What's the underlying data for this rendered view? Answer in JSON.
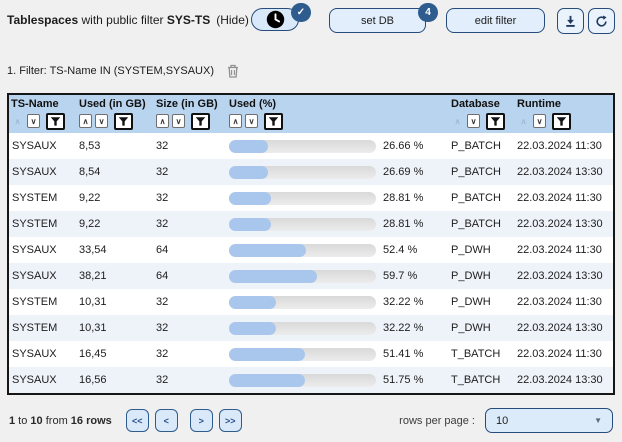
{
  "header": {
    "title_app": "Tablespaces",
    "title_mid": " with public filter ",
    "title_filter": "SYS-TS",
    "title_hide": "(Hide)",
    "check_badge": "✓",
    "set_db_label": "set DB",
    "set_db_badge": "4",
    "edit_filter_label": "edit filter"
  },
  "filter_bar": {
    "text": "1. Filter: TS-Name IN (SYSTEM,SYSAUX)"
  },
  "table": {
    "sort_asc_glyph": "∧",
    "sort_desc_glyph": "∨",
    "columns": [
      {
        "label": "TS-Name",
        "sort_asc_enabled": false
      },
      {
        "label": "Used (in GB)",
        "sort_asc_enabled": true
      },
      {
        "label": "Size (in GB)",
        "sort_asc_enabled": true
      },
      {
        "label": "Used (%)",
        "sort_asc_enabled": true
      },
      {
        "label": "Database",
        "sort_asc_enabled": false
      },
      {
        "label": "Runtime",
        "sort_asc_enabled": false
      }
    ],
    "rows": [
      {
        "ts_name": "SYSAUX",
        "used_gb": "8,53",
        "size_gb": "32",
        "used_pct": 26.66,
        "used_pct_label": "26.66 %",
        "database": "P_BATCH",
        "runtime": "22.03.2024 11:30"
      },
      {
        "ts_name": "SYSAUX",
        "used_gb": "8,54",
        "size_gb": "32",
        "used_pct": 26.69,
        "used_pct_label": "26.69 %",
        "database": "P_BATCH",
        "runtime": "22.03.2024 13:30"
      },
      {
        "ts_name": "SYSTEM",
        "used_gb": "9,22",
        "size_gb": "32",
        "used_pct": 28.81,
        "used_pct_label": "28.81 %",
        "database": "P_BATCH",
        "runtime": "22.03.2024 11:30"
      },
      {
        "ts_name": "SYSTEM",
        "used_gb": "9,22",
        "size_gb": "32",
        "used_pct": 28.81,
        "used_pct_label": "28.81 %",
        "database": "P_BATCH",
        "runtime": "22.03.2024 13:30"
      },
      {
        "ts_name": "SYSAUX",
        "used_gb": "33,54",
        "size_gb": "64",
        "used_pct": 52.4,
        "used_pct_label": "52.4 %",
        "database": "P_DWH",
        "runtime": "22.03.2024 11:30"
      },
      {
        "ts_name": "SYSAUX",
        "used_gb": "38,21",
        "size_gb": "64",
        "used_pct": 59.7,
        "used_pct_label": "59.7 %",
        "database": "P_DWH",
        "runtime": "22.03.2024 13:30"
      },
      {
        "ts_name": "SYSTEM",
        "used_gb": "10,31",
        "size_gb": "32",
        "used_pct": 32.22,
        "used_pct_label": "32.22 %",
        "database": "P_DWH",
        "runtime": "22.03.2024 11:30"
      },
      {
        "ts_name": "SYSTEM",
        "used_gb": "10,31",
        "size_gb": "32",
        "used_pct": 32.22,
        "used_pct_label": "32.22 %",
        "database": "P_DWH",
        "runtime": "22.03.2024 13:30"
      },
      {
        "ts_name": "SYSAUX",
        "used_gb": "16,45",
        "size_gb": "32",
        "used_pct": 51.41,
        "used_pct_label": "51.41 %",
        "database": "T_BATCH",
        "runtime": "22.03.2024 11:30"
      },
      {
        "ts_name": "SYSAUX",
        "used_gb": "16,56",
        "size_gb": "32",
        "used_pct": 51.75,
        "used_pct_label": "51.75 %",
        "database": "T_BATCH",
        "runtime": "22.03.2024 13:30"
      }
    ]
  },
  "footer": {
    "range_start": "1",
    "to_word": " to ",
    "range_end": "10",
    "from_word": " from ",
    "total": "16 rows",
    "pagination": [
      "<<",
      "<",
      ">",
      ">>"
    ],
    "rows_per_page_label": "rows per page :",
    "rows_per_page_value": "10",
    "caret": "▼"
  },
  "colors": {
    "accent_dark_blue": "#2e5c8e",
    "header_blue": "#b9d4ee",
    "bar_fill": "#a9c7ed",
    "button_bg": "#e2eefb",
    "alt_row_bg": "#eef2f9"
  }
}
